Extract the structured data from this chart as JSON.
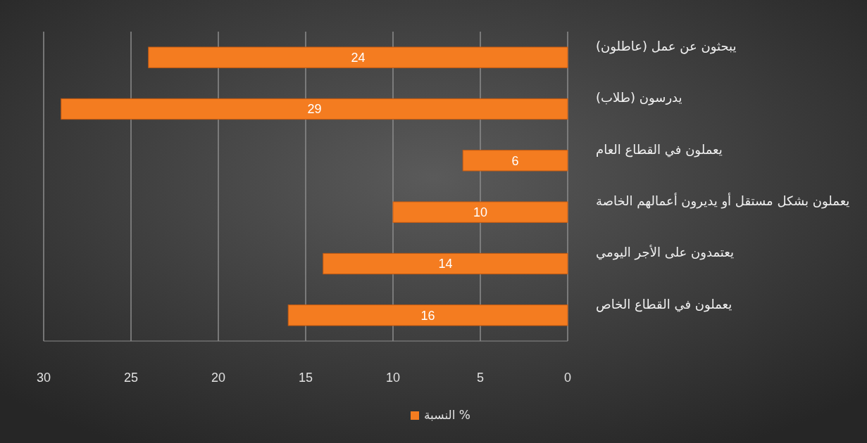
{
  "chart_data": {
    "type": "bar",
    "orientation": "horizontal",
    "categories": [
      "يبحثون عن عمل (عاطلون)",
      "يدرسون (طلاب)",
      "يعملون في القطاع العام",
      "يعملون بشكل مستقل أو يديرون أعمالهم الخاصة",
      "يعتمدون على الأجر اليومي",
      "يعملون في القطاع الخاص"
    ],
    "series": [
      {
        "name": "النسبة %",
        "color": "#f47c20",
        "values": [
          24,
          29,
          6,
          10,
          14,
          16
        ]
      }
    ],
    "xlim": [
      30,
      0
    ],
    "xticks": [
      30,
      25,
      20,
      15,
      10,
      5,
      0
    ],
    "grid": "x",
    "legend": "bottom",
    "data_labels": true
  }
}
